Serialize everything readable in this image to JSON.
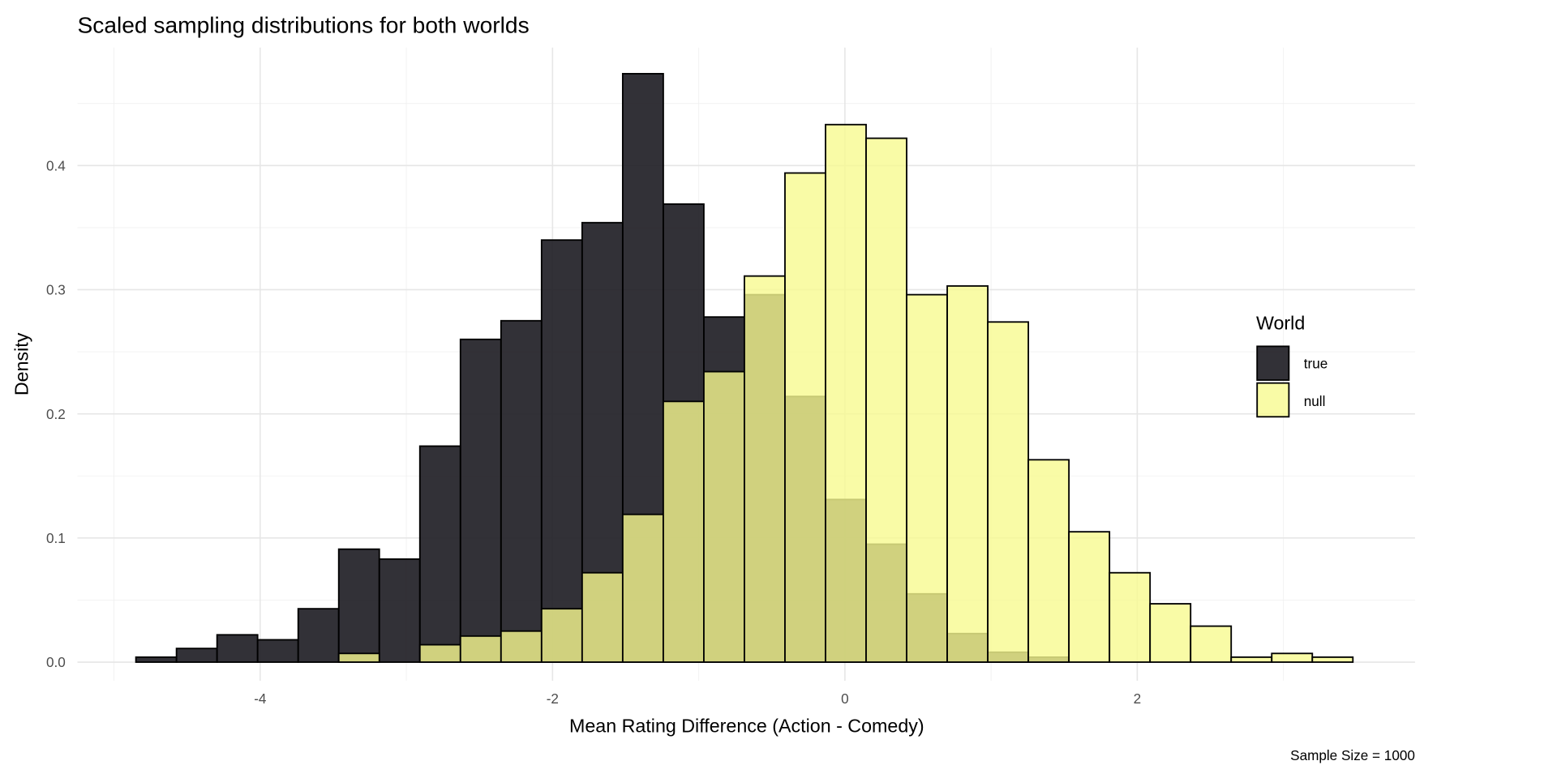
{
  "chart_data": {
    "type": "histogram",
    "title": "Scaled sampling distributions for both worlds",
    "xlabel": "Mean Rating Difference (Action - Comedy)",
    "ylabel": "Density",
    "caption": "Sample Size = 1000",
    "xlim": [
      -5.25,
      3.9
    ],
    "ylim": [
      -0.015,
      0.495
    ],
    "x_ticks": [
      -4,
      -2,
      0,
      2
    ],
    "x_tick_labels": [
      "-4",
      "-2",
      "0",
      "2"
    ],
    "y_ticks": [
      0.0,
      0.1,
      0.2,
      0.3,
      0.4
    ],
    "y_tick_labels": [
      "0.0",
      "0.1",
      "0.2",
      "0.3",
      "0.4"
    ],
    "grid": true,
    "legend": {
      "title": "World",
      "placement": "right"
    },
    "bin_start": -4.85,
    "bin_width": 0.2775,
    "series": [
      {
        "name": "true",
        "color": "#1c1b21",
        "opacity": 0.9,
        "values": [
          0.004,
          0.011,
          0.022,
          0.018,
          0.043,
          0.091,
          0.083,
          0.174,
          0.26,
          0.275,
          0.34,
          0.354,
          0.474,
          0.369,
          0.278,
          0.296,
          0.214,
          0.131,
          0.095,
          0.055,
          0.023,
          0.008,
          0.004,
          0,
          0,
          0,
          0,
          0,
          0,
          0
        ]
      },
      {
        "name": "null",
        "color": "#f8fa90",
        "opacity": 0.8,
        "values": [
          0,
          0,
          0,
          0,
          0,
          0.007,
          0,
          0.014,
          0.021,
          0.025,
          0.043,
          0.072,
          0.119,
          0.21,
          0.234,
          0.311,
          0.394,
          0.433,
          0.422,
          0.296,
          0.303,
          0.274,
          0.163,
          0.105,
          0.072,
          0.047,
          0.029,
          0.004,
          0.007,
          0.004
        ]
      }
    ]
  }
}
